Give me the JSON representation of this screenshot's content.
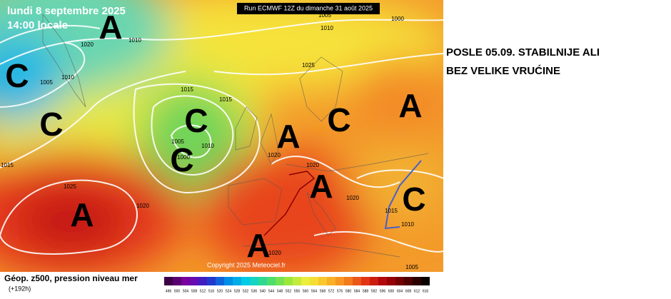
{
  "map": {
    "date": "lundi 8 septembre 2025",
    "time": "14:00 locale",
    "run": "Run ECMWF 12Z du dimanche 31 août 2025",
    "copyright": "Copyright 2025 Meteociel.fr",
    "pressure_labels": [
      "1005",
      "1010",
      "1000",
      "1010",
      "1020",
      "1025",
      "1005",
      "1010",
      "1015",
      "1015",
      "1005",
      "1010",
      "1000",
      "1015",
      "1025",
      "1020",
      "1020",
      "1020",
      "1020",
      "1015",
      "1010",
      "1020",
      "1005"
    ],
    "systems": [
      "A",
      "C",
      "C",
      "C",
      "C",
      "A",
      "C",
      "A",
      "A",
      "C",
      "A",
      "A"
    ]
  },
  "legend": {
    "title": "Géop. z500, pression niveau mer",
    "subtitle": "(+192h)",
    "scale": [
      496,
      500,
      504,
      508,
      512,
      516,
      520,
      524,
      528,
      532,
      536,
      540,
      544,
      548,
      552,
      556,
      560,
      564,
      568,
      572,
      576,
      580,
      584,
      588,
      592,
      596,
      600,
      604,
      608,
      612,
      616
    ]
  },
  "annotation": {
    "lines": [
      "POSLE 05.09. STABILNIJE ALI",
      "BEZ VELIKE VRUĆINE"
    ]
  }
}
